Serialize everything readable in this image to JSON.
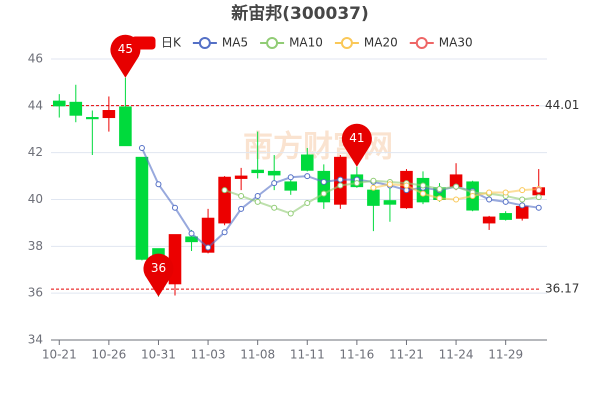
{
  "chart_data": {
    "type": "candlestick",
    "title": "新宙邦(300037)",
    "watermark": "南方财富网",
    "categories": [
      "10-21",
      null,
      null,
      "10-26",
      null,
      null,
      "10-31",
      null,
      null,
      "11-03",
      null,
      null,
      "11-08",
      null,
      null,
      "11-11",
      null,
      null,
      "11-16",
      null,
      null,
      "11-21",
      null,
      null,
      "11-24",
      null,
      null,
      "11-29",
      null,
      null
    ],
    "series": [
      {
        "name": "日K",
        "up_color": "#ec0000",
        "down_color": "#00da3c",
        "open": [
          44.2,
          44.15,
          43.5,
          43.5,
          43.95,
          41.8,
          37.9,
          36.4,
          38.4,
          37.75,
          39.0,
          40.9,
          41.25,
          41.2,
          40.75,
          41.9,
          41.2,
          39.8,
          41.05,
          40.4,
          39.95,
          39.65,
          40.9,
          40.5,
          40.55,
          40.75,
          39.0,
          39.4,
          39.2,
          40.2
        ],
        "close": [
          44.0,
          43.6,
          43.45,
          43.8,
          42.3,
          37.45,
          37.0,
          38.5,
          38.2,
          39.2,
          40.95,
          41.0,
          41.15,
          41.05,
          40.4,
          41.25,
          39.9,
          41.8,
          40.55,
          39.75,
          39.8,
          41.2,
          39.9,
          40.0,
          41.05,
          39.55,
          39.25,
          39.15,
          39.7,
          40.5
        ],
        "high": [
          44.5,
          44.9,
          43.8,
          44.4,
          45.2,
          41.8,
          37.9,
          38.5,
          38.7,
          39.6,
          41.0,
          41.35,
          42.9,
          41.9,
          40.9,
          42.2,
          41.5,
          41.9,
          41.4,
          40.4,
          40.5,
          41.3,
          41.2,
          40.7,
          41.55,
          40.8,
          39.3,
          39.5,
          39.9,
          41.3
        ],
        "low": [
          43.5,
          43.3,
          41.9,
          42.9,
          42.3,
          37.4,
          35.85,
          35.9,
          37.8,
          37.7,
          38.9,
          40.4,
          40.9,
          40.4,
          40.2,
          41.2,
          39.6,
          39.6,
          40.5,
          38.65,
          39.05,
          39.6,
          39.8,
          39.9,
          40.4,
          39.5,
          38.7,
          39.1,
          39.1,
          40.1
        ]
      },
      {
        "name": "MA5",
        "color": "#5470c6",
        "values": [
          null,
          null,
          null,
          null,
          null,
          42.2,
          40.65,
          39.65,
          38.55,
          37.95,
          38.6,
          39.6,
          40.15,
          40.7,
          40.95,
          41.0,
          40.75,
          40.85,
          40.85,
          40.75,
          40.6,
          40.4,
          40.5,
          40.4,
          40.55,
          40.35,
          40.0,
          39.9,
          39.75,
          39.65
        ]
      },
      {
        "name": "MA10",
        "color": "#91cc75",
        "values": [
          null,
          null,
          null,
          null,
          null,
          null,
          null,
          null,
          null,
          null,
          40.4,
          40.15,
          39.9,
          39.65,
          39.4,
          39.85,
          40.25,
          40.6,
          40.7,
          40.8,
          40.75,
          40.7,
          40.6,
          40.45,
          40.55,
          40.3,
          40.25,
          40.15,
          40.0,
          40.1
        ]
      },
      {
        "name": "MA20",
        "color": "#fac858",
        "values": [
          null,
          null,
          null,
          null,
          null,
          null,
          null,
          null,
          null,
          null,
          null,
          null,
          null,
          null,
          null,
          null,
          null,
          null,
          null,
          40.5,
          40.65,
          40.6,
          40.25,
          40.05,
          40.0,
          40.15,
          40.3,
          40.3,
          40.4,
          40.45
        ]
      },
      {
        "name": "MA30",
        "color": "#ee6666",
        "values": [
          null,
          null,
          null,
          null,
          null,
          null,
          null,
          null,
          null,
          null,
          null,
          null,
          null,
          null,
          null,
          null,
          null,
          null,
          null,
          null,
          null,
          null,
          null,
          null,
          null,
          null,
          null,
          null,
          null,
          40.4
        ]
      }
    ],
    "mark_lines": [
      44.01,
      36.17
    ],
    "mark_points": [
      {
        "value": 45.2,
        "label": "45"
      },
      {
        "value": 35.85,
        "label": "36"
      },
      {
        "value": 41.4,
        "label": "41"
      }
    ],
    "mark_color": "#e60000",
    "ylim": [
      34,
      46
    ],
    "yticks": [
      34,
      36,
      38,
      40,
      42,
      44,
      46
    ],
    "grid": true
  }
}
